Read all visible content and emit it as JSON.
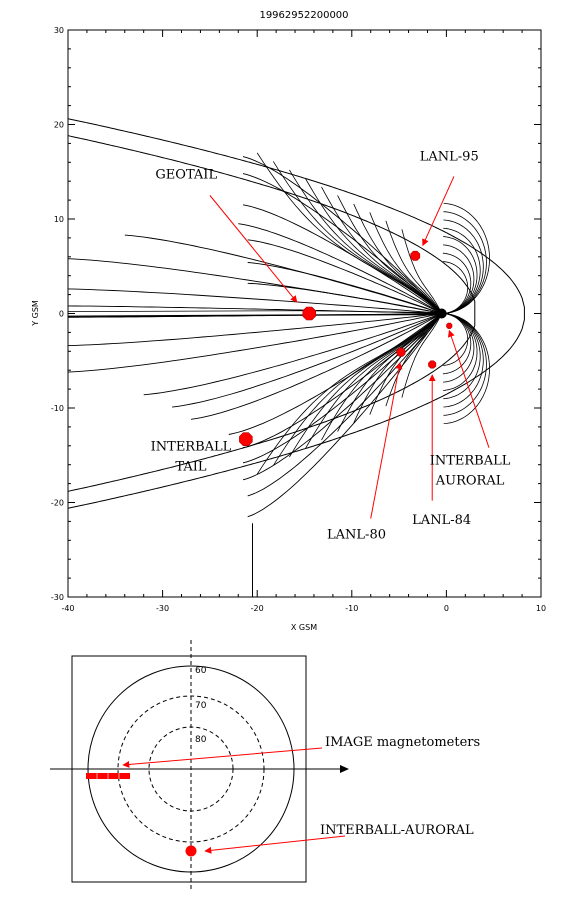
{
  "chart_data": [
    {
      "type": "scatter",
      "title": "19962952200000",
      "xlabel": "X GSM",
      "ylabel": "Y GSM",
      "xlim": [
        -40,
        10
      ],
      "ylim": [
        -30,
        30
      ],
      "x_ticks": [
        -40,
        -30,
        -20,
        -10,
        0,
        10
      ],
      "x_tick_labels": [
        "-40",
        "-30",
        "-20",
        "-10",
        "0",
        "10"
      ],
      "y_ticks": [
        -30,
        -20,
        -10,
        0,
        10,
        20,
        30
      ],
      "y_tick_labels": [
        "-30",
        "-20",
        "-10",
        "0",
        "10",
        "20",
        "30"
      ],
      "grid": false,
      "background": "magnetospheric field lines with magnetopause and bow shock",
      "points": [
        {
          "label": "GEOTAIL",
          "x": -14.5,
          "y": 0.0,
          "label_x": -27.5,
          "label_y": 14.3
        },
        {
          "label": "LANL-95",
          "x": -3.3,
          "y": 6.1,
          "label_x": 0.3,
          "label_y": 16.2
        },
        {
          "label": "LANL-80",
          "x": -4.8,
          "y": -4.1,
          "label_x": -9.5,
          "label_y": -23.8
        },
        {
          "label": "LANL-84",
          "x": -1.5,
          "y": -5.4,
          "label_x": -0.5,
          "label_y": -22.3
        },
        {
          "label": "INTERBALL AURORAL",
          "x": 0.3,
          "y": -1.3,
          "label_x": 2.5,
          "label_y": -16.0
        },
        {
          "label": "INTERBALL TAIL",
          "x": -21.2,
          "y": -13.3,
          "label_x": -27.0,
          "label_y": -14.5
        }
      ],
      "marker_color": "#ff0000"
    },
    {
      "type": "scatter",
      "subtype": "polar",
      "rings": [
        {
          "latitude": 60,
          "label": "60",
          "style": "solid"
        },
        {
          "latitude": 70,
          "label": "70",
          "style": "dashed"
        },
        {
          "latitude": 80,
          "label": "80",
          "style": "dashed"
        }
      ],
      "annotations": [
        {
          "label": "IMAGE magnetometers"
        },
        {
          "label": "INTERBALL-AURORAL"
        }
      ],
      "marker_color": "#ff0000"
    }
  ]
}
